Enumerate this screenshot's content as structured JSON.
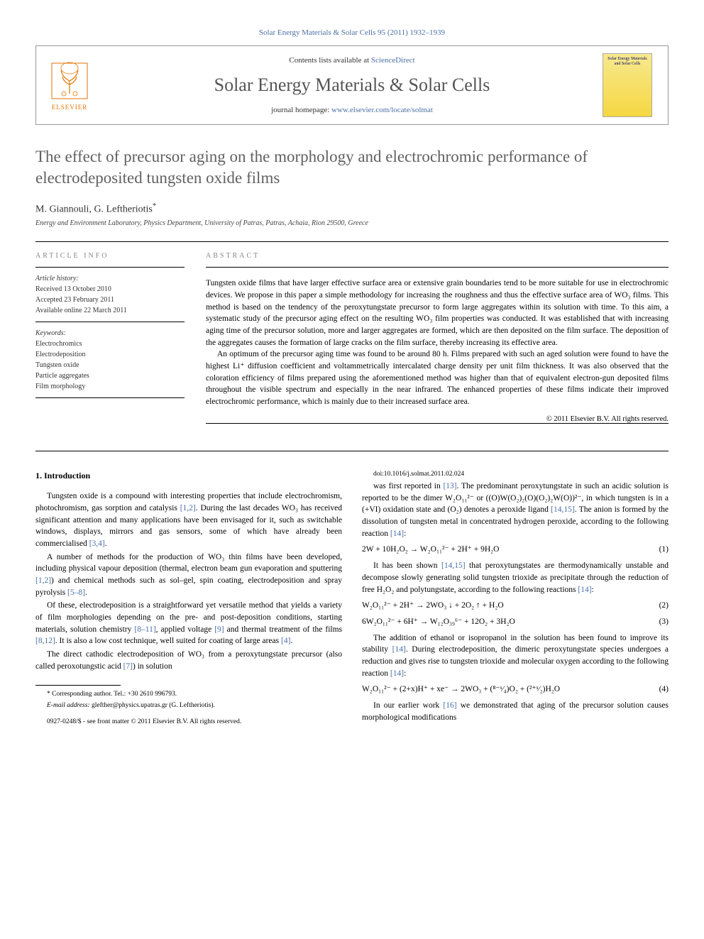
{
  "top_citation": "Solar Energy Materials & Solar Cells 95 (2011) 1932–1939",
  "header": {
    "contents_prefix": "Contents lists available at ",
    "contents_link": "ScienceDirect",
    "journal_name": "Solar Energy Materials & Solar Cells",
    "homepage_prefix": "journal homepage: ",
    "homepage_url": "www.elsevier.com/locate/solmat",
    "publisher": "ELSEVIER",
    "cover_text": "Solar Energy Materials and Solar Cells"
  },
  "title": "The effect of precursor aging on the morphology and electrochromic performance of electrodeposited tungsten oxide films",
  "authors": "M. Giannouli, G. Leftheriotis",
  "corresponding_marker": "*",
  "affiliation": "Energy and Environment Laboratory, Physics Department, University of Patras, Patras, Achaia, Rion 29500, Greece",
  "article_info": {
    "label": "ARTICLE INFO",
    "history_label": "Article history:",
    "received": "Received 13 October 2010",
    "accepted": "Accepted 23 February 2011",
    "available": "Available online 22 March 2011",
    "keywords_label": "Keywords:",
    "keywords": [
      "Electrochromics",
      "Electrodeposition",
      "Tungsten oxide",
      "Particle aggregates",
      "Film morphology"
    ]
  },
  "abstract": {
    "label": "ABSTRACT",
    "para1": "Tungsten oxide films that have larger effective surface area or extensive grain boundaries tend to be more suitable for use in electrochromic devices. We propose in this paper a simple methodology for increasing the roughness and thus the effective surface area of WO₃ films. This method is based on the tendency of the peroxytungstate precursor to form large aggregates within its solution with time. To this aim, a systematic study of the precursor aging effect on the resulting WO₃ film properties was conducted. It was established that with increasing aging time of the precursor solution, more and larger aggregates are formed, which are then deposited on the film surface. The deposition of the aggregates causes the formation of large cracks on the film surface, thereby increasing its effective area.",
    "para2": "An optimum of the precursor aging time was found to be around 80 h. Films prepared with such an aged solution were found to have the highest Li⁺ diffusion coefficient and voltammetrically intercalated charge density per unit film thickness. It was also observed that the coloration efficiency of films prepared using the aforementioned method was higher than that of equivalent electron-gun deposited films throughout the visible spectrum and especially in the near infrared. The enhanced properties of these films indicate their improved electrochromic performance, which is mainly due to their increased surface area.",
    "copyright": "© 2011 Elsevier B.V. All rights reserved."
  },
  "intro": {
    "heading": "1. Introduction",
    "p1": "Tungsten oxide is a compound with interesting properties that include electrochromism, photochromism, gas sorption and catalysis [1,2]. During the last decades WO₃ has received significant attention and many applications have been envisaged for it, such as switchable windows, displays, mirrors and gas sensors, some of which have already been commercialised [3,4].",
    "p2": "A number of methods for the production of WO₃ thin films have been developed, including physical vapour deposition (thermal, electron beam gun evaporation and sputtering [1,2]) and chemical methods such as sol–gel, spin coating, electrodeposition and spray pyrolysis [5–8].",
    "p3": "Of these, electrodeposition is a straightforward yet versatile method that yields a variety of film morphologies depending on the pre- and post-deposition conditions, starting materials, solution chemistry [8–11], applied voltage [9] and thermal treatment of the films [8,12]. It is also a low cost technique, well suited for coating of large areas [4].",
    "p4": "The direct cathodic electrodeposition of WO₃ from a peroxytungstate precursor (also called peroxotungstic acid [7]) in solution",
    "p5": "was first reported in [13]. The predominant peroxytungstate in such an acidic solution is reported to be the dimer W₂O₁₁²⁻ or ((O)W(O₂)₂(O)(O₂)₂W(O))²⁻, in which tungsten is in a (+VI) oxidation state and (O₂) denotes a peroxide ligand [14,15]. The anion is formed by the dissolution of tungsten metal in concentrated hydrogen peroxide, according to the following reaction [14]:",
    "eq1": "2W + 10H₂O₂ → W₂O₁₁²⁻ + 2H⁺ + 9H₂O",
    "eq1num": "(1)",
    "p6": "It has been shown [14,15] that peroxytungstates are thermodynamically unstable and decompose slowly generating solid tungsten trioxide as precipitate through the reduction of free H₂O₂ and polytungstate, according to the following reactions [14]:",
    "eq2": "W₂O₁₁²⁻ + 2H⁺ → 2WO₃ ↓ + 2O₂ ↑ + H₂O",
    "eq2num": "(2)",
    "eq3": "6W₂O₁₁²⁻ + 6H⁺  →  W₁₂O₃₉⁶⁻  +  12O₂  +  3H₂O",
    "eq3num": "(3)",
    "p7": "The addition of ethanol or isopropanol in the solution has been found to improve its stability [14]. During electrodeposition, the dimeric peroxytungstate species undergoes a reduction and gives rise to tungsten trioxide and molecular oxygen according to the following reaction [14]:",
    "eq4": "W₂O₁₁²⁻ + (2+x)H⁺ + xe⁻ → 2WO₃ + (⁸⁻ˣ⁄₄)O₂ + (²⁺ˣ⁄₂)H₂O",
    "eq4num": "(4)",
    "p8": "In our earlier work [16] we demonstrated that aging of the precursor solution causes morphological modifications"
  },
  "footnote": {
    "corr": "* Corresponding author. Tel.: +30 2610 996793.",
    "email_label": "E-mail address: ",
    "email": "glefther@physics.upatras.gr (G. Leftheriotis).",
    "issn": "0927-0248/$ - see front matter © 2011 Elsevier B.V. All rights reserved.",
    "doi": "doi:10.1016/j.solmat.2011.02.024"
  },
  "colors": {
    "link": "#4a6fa5",
    "title_gray": "#616161",
    "label_gray": "#888888",
    "elsevier_orange": "#e57200"
  }
}
